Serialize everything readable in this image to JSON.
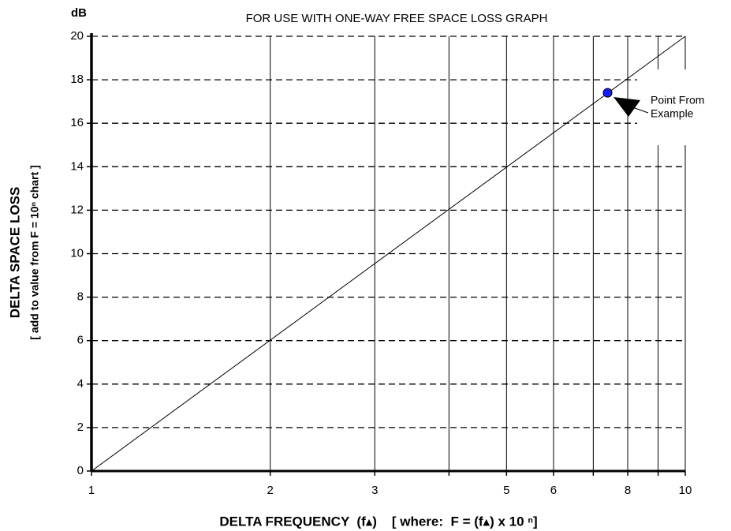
{
  "chart_data": {
    "type": "line",
    "title": "FOR USE WITH ONE-WAY FREE SPACE LOSS GRAPH",
    "y_unit": "dB",
    "y_label": "DELTA SPACE LOSS",
    "y_sublabel": "[ add to value from F = 10ⁿ chart ]",
    "x_label": "DELTA FREQUENCY  (f▴)    [ where:  F = (f▴) x 10 ⁿ]",
    "x_log": true,
    "xlim": [
      1,
      10
    ],
    "ylim": [
      0,
      20
    ],
    "xticks": [
      1,
      2,
      3,
      5,
      6,
      8,
      10
    ],
    "x_minor_ticks": [
      4,
      7,
      9
    ],
    "yticks": [
      0,
      2,
      4,
      6,
      8,
      10,
      12,
      14,
      16,
      18,
      20
    ],
    "grid": true,
    "series": [
      {
        "x": [
          1,
          10
        ],
        "values": [
          0,
          20
        ],
        "color": "#000000",
        "style": "line"
      },
      {
        "x": [
          7.4
        ],
        "values": [
          17.4
        ],
        "color": "#1a1aff",
        "style": "marker"
      }
    ],
    "annotation": [
      "Point From",
      "Example"
    ]
  }
}
